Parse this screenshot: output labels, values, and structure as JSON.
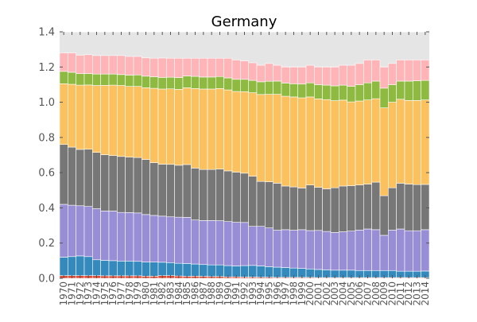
{
  "chart_data": {
    "type": "bar",
    "stacked": true,
    "title": "Germany",
    "xlabel": "",
    "ylabel": "",
    "ylim": [
      0,
      1.4
    ],
    "yticks": [
      "0.0",
      "0.2",
      "0.4",
      "0.6",
      "0.8",
      "1.0",
      "1.2",
      "1.4"
    ],
    "grid": true,
    "legend": "none",
    "background_color": "#e5e5e5",
    "categories": [
      "1970",
      "1971",
      "1972",
      "1973",
      "1974",
      "1975",
      "1976",
      "1977",
      "1978",
      "1979",
      "1980",
      "1981",
      "1982",
      "1983",
      "1984",
      "1985",
      "1986",
      "1987",
      "1988",
      "1989",
      "1990",
      "1991",
      "1992",
      "1993",
      "1994",
      "1995",
      "1996",
      "1997",
      "1998",
      "1999",
      "2000",
      "2001",
      "2002",
      "2003",
      "2004",
      "2005",
      "2006",
      "2007",
      "2008",
      "2009",
      "2010",
      "2011",
      "2012",
      "2013",
      "2014"
    ],
    "series": [
      {
        "color": "#e24a33",
        "values": [
          0.015,
          0.015,
          0.015,
          0.015,
          0.015,
          0.014,
          0.014,
          0.014,
          0.014,
          0.014,
          0.012,
          0.012,
          0.015,
          0.015,
          0.013,
          0.011,
          0.012,
          0.011,
          0.01,
          0.01,
          0.008,
          0.008,
          0.007,
          0.007,
          0.006,
          0.006,
          0.005,
          0.005,
          0.005,
          0.005,
          0.005,
          0.004,
          0.004,
          0.004,
          0.004,
          0.004,
          0.004,
          0.004,
          0.004,
          0.004,
          0.004,
          0.004,
          0.004,
          0.004,
          0.004
        ]
      },
      {
        "color": "#348abd",
        "values": [
          0.105,
          0.108,
          0.112,
          0.108,
          0.09,
          0.088,
          0.086,
          0.084,
          0.084,
          0.082,
          0.08,
          0.08,
          0.076,
          0.074,
          0.072,
          0.073,
          0.069,
          0.067,
          0.066,
          0.066,
          0.064,
          0.062,
          0.065,
          0.066,
          0.064,
          0.06,
          0.058,
          0.056,
          0.053,
          0.051,
          0.048,
          0.046,
          0.044,
          0.042,
          0.042,
          0.042,
          0.04,
          0.04,
          0.04,
          0.04,
          0.04,
          0.036,
          0.036,
          0.036,
          0.037
        ]
      },
      {
        "color": "#988ed5",
        "values": [
          0.3,
          0.292,
          0.285,
          0.285,
          0.29,
          0.28,
          0.282,
          0.276,
          0.275,
          0.275,
          0.27,
          0.265,
          0.262,
          0.26,
          0.262,
          0.262,
          0.25,
          0.25,
          0.252,
          0.251,
          0.25,
          0.248,
          0.245,
          0.222,
          0.225,
          0.22,
          0.21,
          0.215,
          0.215,
          0.22,
          0.218,
          0.222,
          0.218,
          0.214,
          0.218,
          0.222,
          0.23,
          0.236,
          0.232,
          0.2,
          0.23,
          0.24,
          0.23,
          0.23,
          0.235
        ]
      },
      {
        "color": "#777777",
        "values": [
          0.34,
          0.33,
          0.32,
          0.325,
          0.32,
          0.32,
          0.315,
          0.318,
          0.315,
          0.315,
          0.313,
          0.3,
          0.295,
          0.298,
          0.295,
          0.3,
          0.295,
          0.29,
          0.29,
          0.293,
          0.288,
          0.285,
          0.28,
          0.285,
          0.255,
          0.262,
          0.267,
          0.248,
          0.246,
          0.237,
          0.259,
          0.245,
          0.242,
          0.254,
          0.26,
          0.258,
          0.256,
          0.255,
          0.27,
          0.225,
          0.24,
          0.26,
          0.265,
          0.262,
          0.257
        ]
      },
      {
        "color": "#fbc15e",
        "values": [
          0.345,
          0.357,
          0.365,
          0.365,
          0.38,
          0.394,
          0.4,
          0.403,
          0.402,
          0.404,
          0.407,
          0.422,
          0.427,
          0.429,
          0.431,
          0.436,
          0.452,
          0.457,
          0.457,
          0.458,
          0.46,
          0.458,
          0.463,
          0.474,
          0.494,
          0.497,
          0.505,
          0.51,
          0.511,
          0.512,
          0.5,
          0.502,
          0.507,
          0.495,
          0.488,
          0.476,
          0.477,
          0.478,
          0.474,
          0.499,
          0.486,
          0.477,
          0.475,
          0.478,
          0.48
        ]
      },
      {
        "color": "#8eba42",
        "values": [
          0.07,
          0.068,
          0.065,
          0.065,
          0.065,
          0.064,
          0.063,
          0.062,
          0.064,
          0.065,
          0.066,
          0.066,
          0.066,
          0.066,
          0.067,
          0.067,
          0.069,
          0.068,
          0.068,
          0.068,
          0.068,
          0.069,
          0.07,
          0.07,
          0.072,
          0.074,
          0.075,
          0.075,
          0.075,
          0.078,
          0.08,
          0.081,
          0.082,
          0.084,
          0.085,
          0.088,
          0.093,
          0.097,
          0.1,
          0.112,
          0.1,
          0.103,
          0.11,
          0.112,
          0.111
        ]
      },
      {
        "color": "#ffb5b8",
        "values": [
          0.105,
          0.11,
          0.105,
          0.107,
          0.105,
          0.105,
          0.105,
          0.108,
          0.106,
          0.105,
          0.104,
          0.105,
          0.11,
          0.108,
          0.11,
          0.101,
          0.103,
          0.107,
          0.107,
          0.104,
          0.112,
          0.11,
          0.105,
          0.1,
          0.094,
          0.101,
          0.09,
          0.091,
          0.095,
          0.097,
          0.1,
          0.1,
          0.103,
          0.107,
          0.113,
          0.12,
          0.12,
          0.13,
          0.12,
          0.12,
          0.12,
          0.12,
          0.12,
          0.118,
          0.116
        ]
      }
    ]
  }
}
